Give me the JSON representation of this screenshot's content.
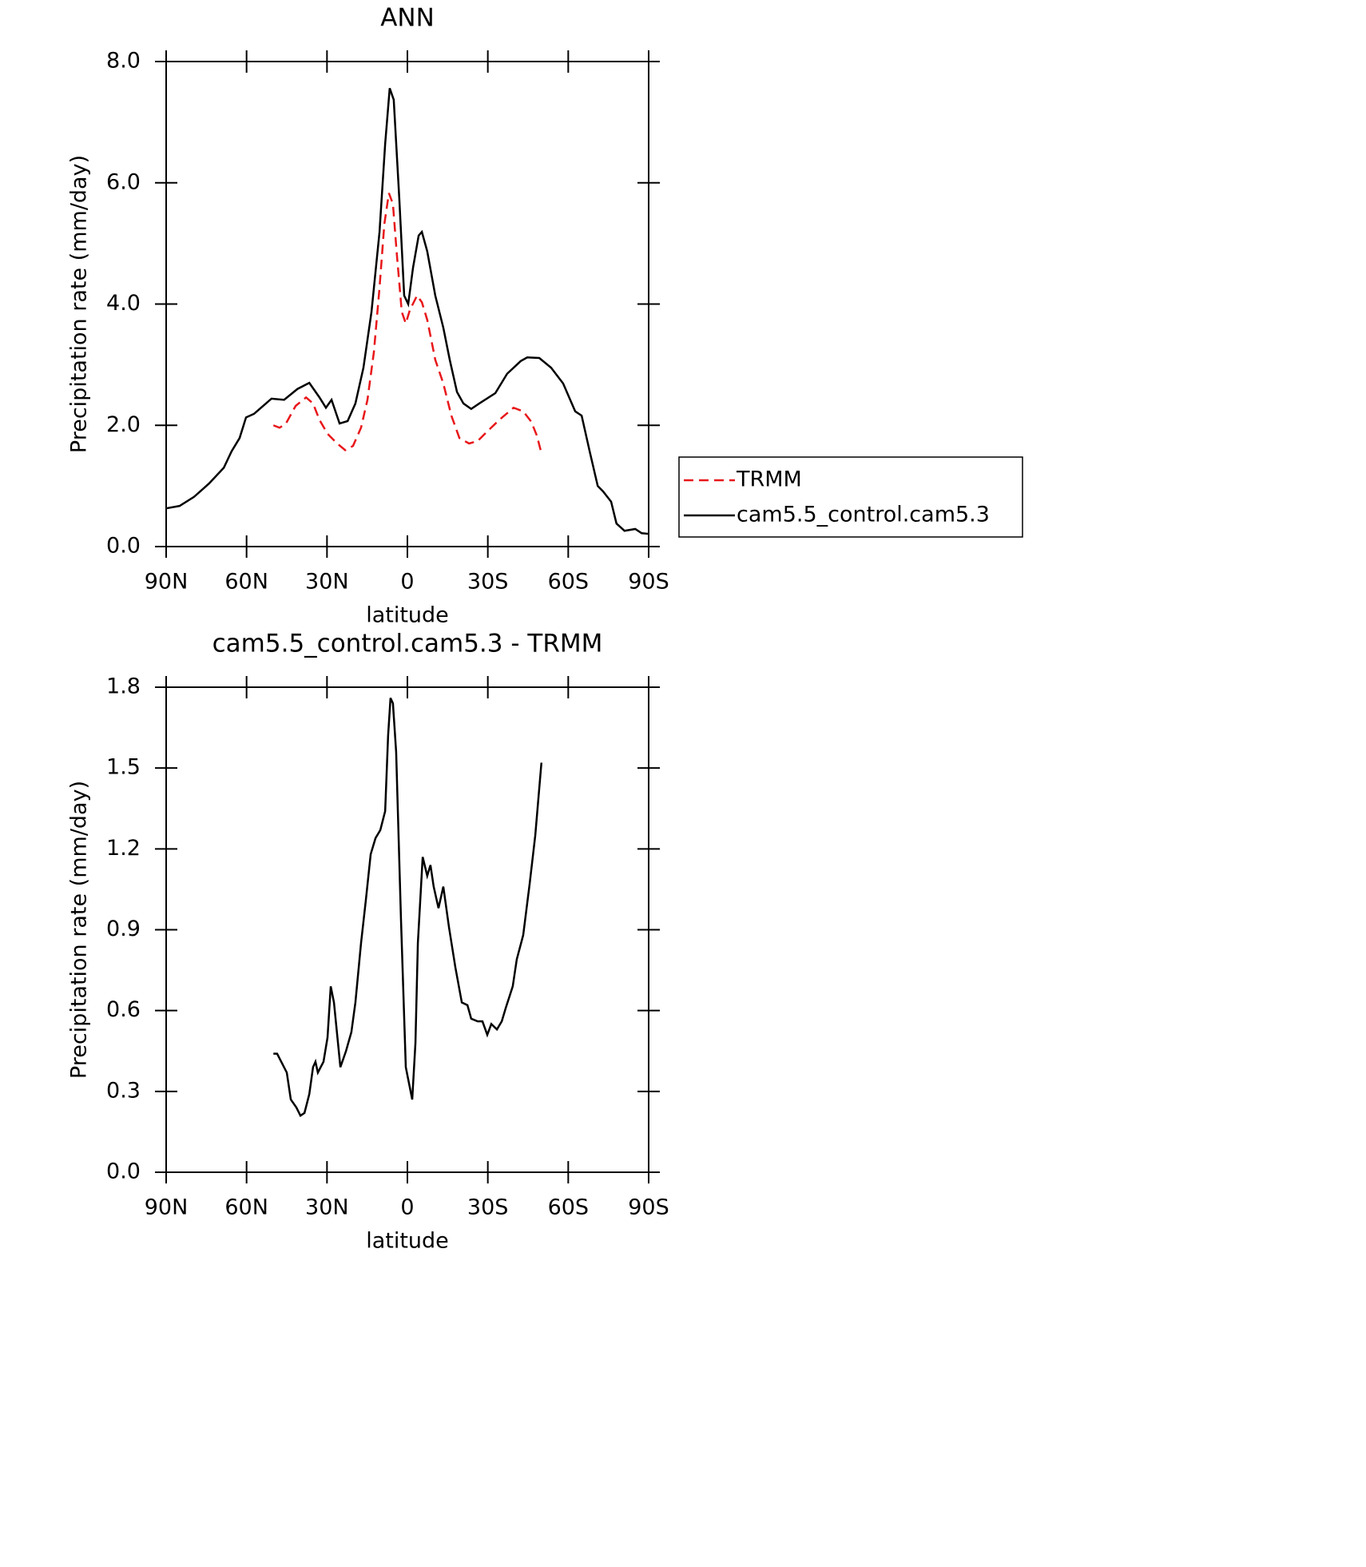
{
  "chart_data": [
    {
      "type": "line",
      "title": "ANN",
      "xlabel": "latitude",
      "ylabel": "Precipitation rate (mm/day)",
      "xlim": [
        90,
        -90
      ],
      "ylim": [
        0,
        8
      ],
      "xticks": [
        {
          "value": 90,
          "label": "90N"
        },
        {
          "value": 60,
          "label": "60N"
        },
        {
          "value": 30,
          "label": "30N"
        },
        0,
        {
          "value": -30,
          "label": "30S"
        },
        {
          "value": -60,
          "label": "60S"
        },
        {
          "value": -90,
          "label": "90S"
        }
      ],
      "yticks": [
        {
          "value": 0,
          "label": "0.0"
        },
        {
          "value": 2,
          "label": "2.0"
        },
        {
          "value": 4,
          "label": "4.0"
        },
        {
          "value": 6,
          "label": "6.0"
        },
        {
          "value": 8,
          "label": "8.0"
        }
      ],
      "legend": "right",
      "series": [
        {
          "name": "TRMM",
          "color": "#e8171a",
          "dashed": true,
          "x": [
            50,
            47.7,
            45.3,
            41.7,
            37.8,
            35.2,
            32.8,
            29.8,
            26.2,
            23.2,
            20.3,
            17.3,
            14.9,
            12.5,
            10.4,
            8.6,
            6.9,
            5.4,
            3.9,
            2.1,
            0.6,
            -0.9,
            -3.6,
            -5.4,
            -7.4,
            -10.4,
            -13.4,
            -16.4,
            -19.4,
            -23,
            -26.2,
            -29.8,
            -34.3,
            -39.6,
            -43.2,
            -46.2,
            -48.3,
            -50
          ],
          "values": [
            2.0,
            1.96,
            2.03,
            2.32,
            2.46,
            2.36,
            2.09,
            1.86,
            1.7,
            1.59,
            1.66,
            1.96,
            2.42,
            3.21,
            4.27,
            5.32,
            5.83,
            5.65,
            4.8,
            3.87,
            3.68,
            3.9,
            4.14,
            4.03,
            3.74,
            3.08,
            2.69,
            2.16,
            1.79,
            1.7,
            1.74,
            1.9,
            2.09,
            2.29,
            2.23,
            2.06,
            1.83,
            1.54
          ]
        },
        {
          "name": "cam5.5_control.cam5.3",
          "color": "#000000",
          "dashed": false,
          "x": [
            90,
            85,
            79.6,
            74,
            68.5,
            65.6,
            62.6,
            60.2,
            57.2,
            50.7,
            46,
            41,
            36.6,
            32.8,
            30.4,
            28.3,
            25.3,
            22.3,
            19.4,
            16.4,
            13.4,
            10.4,
            8.3,
            6.6,
            5.1,
            3,
            1.2,
            -0.3,
            -2.1,
            -4.2,
            -5.4,
            -7.4,
            -10.4,
            -13.4,
            -15.8,
            -18.5,
            -20.9,
            -23.8,
            -26.8,
            -32.8,
            -37.2,
            -42.3,
            -44.7,
            -49.2,
            -53.6,
            -58.1,
            -62.6,
            -65,
            -68,
            -71,
            -73,
            -76,
            -78,
            -81,
            -85,
            -87.4,
            -90
          ],
          "values": [
            0.63,
            0.67,
            0.82,
            1.04,
            1.3,
            1.57,
            1.79,
            2.13,
            2.19,
            2.44,
            2.42,
            2.6,
            2.7,
            2.46,
            2.29,
            2.42,
            2.03,
            2.07,
            2.36,
            2.95,
            3.87,
            5.19,
            6.64,
            7.56,
            7.37,
            5.72,
            4.14,
            4.0,
            4.6,
            5.13,
            5.19,
            4.87,
            4.14,
            3.61,
            3.08,
            2.55,
            2.36,
            2.27,
            2.36,
            2.53,
            2.85,
            3.06,
            3.12,
            3.11,
            2.95,
            2.69,
            2.23,
            2.16,
            1.57,
            1.0,
            0.91,
            0.74,
            0.38,
            0.26,
            0.29,
            0.22,
            0.21
          ]
        }
      ]
    },
    {
      "type": "line",
      "title": "cam5.5_control.cam5.3 - TRMM",
      "xlabel": "latitude",
      "ylabel": "Precipitation rate (mm/day)",
      "xlim": [
        90,
        -90
      ],
      "ylim": [
        0,
        1.8
      ],
      "xticks": [
        {
          "value": 90,
          "label": "90N"
        },
        {
          "value": 60,
          "label": "60N"
        },
        {
          "value": 30,
          "label": "30N"
        },
        0,
        {
          "value": -30,
          "label": "30S"
        },
        {
          "value": -60,
          "label": "60S"
        },
        {
          "value": -90,
          "label": "90S"
        }
      ],
      "yticks": [
        {
          "value": 0,
          "label": "0.0"
        },
        {
          "value": 0.3,
          "label": "0.3"
        },
        {
          "value": 0.6,
          "label": "0.6"
        },
        {
          "value": 0.9,
          "label": "0.9"
        },
        {
          "value": 1.2,
          "label": "1.2"
        },
        {
          "value": 1.5,
          "label": "1.5"
        },
        {
          "value": 1.8,
          "label": "1.8"
        }
      ],
      "series": [
        {
          "color": "#000000",
          "dashed": false,
          "x": [
            50,
            48.6,
            45,
            43.5,
            41.4,
            39.9,
            38.4,
            36.6,
            35.2,
            34.3,
            33.4,
            31.3,
            29.8,
            28.6,
            27.4,
            25,
            22.9,
            20.9,
            19.4,
            17.3,
            15.5,
            13.7,
            11.9,
            10.1,
            8.3,
            7.2,
            6.3,
            5.4,
            4.2,
            2.4,
            0.6,
            -0.6,
            -1.8,
            -3,
            -3.9,
            -5.7,
            -7.4,
            -8.6,
            -9.8,
            -11.6,
            -13.4,
            -15.5,
            -17.9,
            -20.3,
            -22.4,
            -23.8,
            -26.2,
            -28,
            -29.8,
            -31.3,
            -33.4,
            -35.2,
            -36.7,
            -39.3,
            -40.8,
            -43.2,
            -45.6,
            -47.7,
            -50
          ],
          "values": [
            0.44,
            0.44,
            0.37,
            0.27,
            0.24,
            0.21,
            0.22,
            0.29,
            0.39,
            0.41,
            0.37,
            0.41,
            0.5,
            0.69,
            0.63,
            0.39,
            0.45,
            0.52,
            0.63,
            0.85,
            1.01,
            1.18,
            1.24,
            1.27,
            1.34,
            1.62,
            1.76,
            1.74,
            1.56,
            0.94,
            0.39,
            0.33,
            0.27,
            0.48,
            0.85,
            1.17,
            1.1,
            1.14,
            1.06,
            0.98,
            1.06,
            0.91,
            0.76,
            0.63,
            0.62,
            0.57,
            0.56,
            0.56,
            0.51,
            0.55,
            0.53,
            0.56,
            0.61,
            0.69,
            0.79,
            0.88,
            1.07,
            1.25,
            1.52
          ]
        }
      ]
    }
  ]
}
